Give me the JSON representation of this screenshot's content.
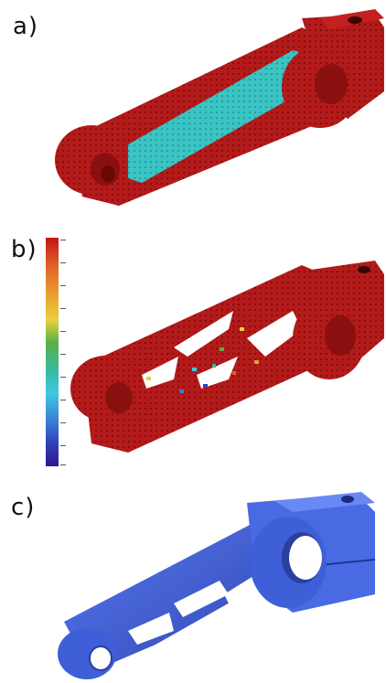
{
  "panels": [
    {
      "id": "a",
      "label": "a)"
    },
    {
      "id": "b",
      "label": "b)"
    },
    {
      "id": "c",
      "label": "c)"
    }
  ],
  "colors": {
    "mesh_red": "#b01818",
    "mesh_dark": "#7a0c0c",
    "cyan": "#39c2c2",
    "blue_body": "#3f5fd8",
    "blue_dark": "#2c45a8"
  },
  "colorbar_stops": [
    "#c41414",
    "#e0602a",
    "#e8a030",
    "#e8d040",
    "#58b048",
    "#38b8a0",
    "#40c8e0",
    "#3a80d8",
    "#3040b8",
    "#301890"
  ]
}
